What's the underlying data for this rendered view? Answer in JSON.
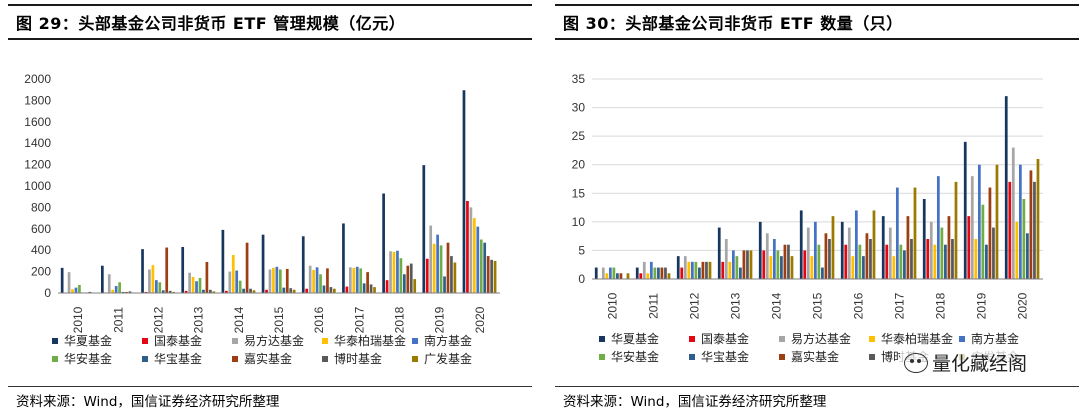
{
  "left": {
    "title": "图 29：头部基金公司非货币 ETF 管理规模（亿元）",
    "source": "资料来源：Wind，国信证券经济研究所整理"
  },
  "right": {
    "title": "图 30：头部基金公司非货币 ETF 数量（只）",
    "source": "资料来源：Wind，国信证券经济研究所整理"
  },
  "watermark": "量化藏经阁",
  "colors": {
    "华夏基金": "#17375e",
    "国泰基金": "#e30613",
    "易方达基金": "#a6a6a6",
    "华泰柏瑞基金": "#ffc000",
    "南方基金": "#4472c4",
    "华安基金": "#70ad47",
    "华宝基金": "#2e5f8a",
    "嘉实基金": "#9c3d12",
    "博时基金": "#595959",
    "广发基金": "#9c7a00"
  },
  "chart_data": [
    {
      "type": "bar",
      "title": "图 29：头部基金公司非货币 ETF 管理规模（亿元）",
      "categories": [
        "2010",
        "2011",
        "2012",
        "2013",
        "2014",
        "2015",
        "2016",
        "2017",
        "2018",
        "2019",
        "2020"
      ],
      "ylim": [
        0,
        2000
      ],
      "yticks": [
        0,
        200,
        400,
        600,
        800,
        1000,
        1200,
        1400,
        1600,
        1800,
        2000
      ],
      "grid": false,
      "legend_position": "bottom",
      "series": [
        {
          "name": "华夏基金",
          "values": [
            235,
            255,
            410,
            430,
            590,
            545,
            530,
            650,
            930,
            1195,
            1895
          ]
        },
        {
          "name": "国泰基金",
          "values": [
            3,
            5,
            10,
            20,
            20,
            30,
            40,
            60,
            120,
            320,
            860
          ]
        },
        {
          "name": "易方达基金",
          "values": [
            195,
            175,
            220,
            190,
            200,
            220,
            255,
            240,
            390,
            630,
            800
          ]
        },
        {
          "name": "华泰柏瑞基金",
          "values": [
            35,
            30,
            260,
            150,
            355,
            235,
            215,
            235,
            385,
            460,
            700
          ]
        },
        {
          "name": "南方基金",
          "values": [
            50,
            65,
            120,
            110,
            210,
            245,
            240,
            245,
            395,
            545,
            620
          ]
        },
        {
          "name": "华安基金",
          "values": [
            75,
            100,
            100,
            140,
            115,
            220,
            175,
            230,
            325,
            445,
            500
          ]
        },
        {
          "name": "华宝基金",
          "values": [
            5,
            10,
            25,
            30,
            40,
            50,
            70,
            90,
            175,
            155,
            470
          ]
        },
        {
          "name": "嘉实基金",
          "values": [
            5,
            10,
            425,
            290,
            470,
            225,
            230,
            195,
            255,
            470,
            345
          ]
        },
        {
          "name": "博时基金",
          "values": [
            10,
            15,
            20,
            30,
            40,
            45,
            55,
            80,
            275,
            345,
            310
          ]
        },
        {
          "name": "广发基金",
          "values": [
            3,
            5,
            10,
            15,
            25,
            30,
            40,
            55,
            130,
            285,
            300
          ]
        }
      ]
    },
    {
      "type": "bar",
      "title": "图 30：头部基金公司非货币 ETF 数量（只）",
      "categories": [
        "2010",
        "2011",
        "2012",
        "2013",
        "2014",
        "2015",
        "2016",
        "2017",
        "2018",
        "2019",
        "2020"
      ],
      "ylim": [
        0,
        35
      ],
      "yticks": [
        0,
        5,
        10,
        15,
        20,
        25,
        30,
        35
      ],
      "grid": true,
      "legend_position": "bottom",
      "series": [
        {
          "name": "华夏基金",
          "values": [
            2,
            2,
            4,
            9,
            10,
            12,
            10,
            11,
            14,
            24,
            32
          ]
        },
        {
          "name": "国泰基金",
          "values": [
            0,
            1,
            2,
            3,
            5,
            5,
            6,
            6,
            7,
            11,
            17
          ]
        },
        {
          "name": "易方达基金",
          "values": [
            2,
            3,
            4,
            7,
            8,
            9,
            9,
            9,
            10,
            18,
            23
          ]
        },
        {
          "name": "华泰柏瑞基金",
          "values": [
            1,
            1,
            3,
            3,
            4,
            4,
            4,
            4,
            6,
            7,
            10
          ]
        },
        {
          "name": "南方基金",
          "values": [
            2,
            3,
            3,
            5,
            7,
            10,
            12,
            16,
            18,
            20,
            20
          ]
        },
        {
          "name": "华安基金",
          "values": [
            2,
            2,
            3,
            4,
            5,
            6,
            6,
            6,
            9,
            13,
            14
          ]
        },
        {
          "name": "华宝基金",
          "values": [
            1,
            2,
            2,
            2,
            4,
            2,
            4,
            5,
            6,
            6,
            8
          ]
        },
        {
          "name": "嘉实基金",
          "values": [
            1,
            2,
            3,
            5,
            6,
            8,
            8,
            11,
            11,
            16,
            19
          ]
        },
        {
          "name": "博时基金",
          "values": [
            0,
            2,
            3,
            5,
            6,
            7,
            7,
            7,
            7,
            9,
            17
          ]
        },
        {
          "name": "广发基金",
          "values": [
            1,
            1,
            3,
            5,
            4,
            11,
            12,
            16,
            17,
            20,
            21
          ]
        }
      ]
    }
  ]
}
